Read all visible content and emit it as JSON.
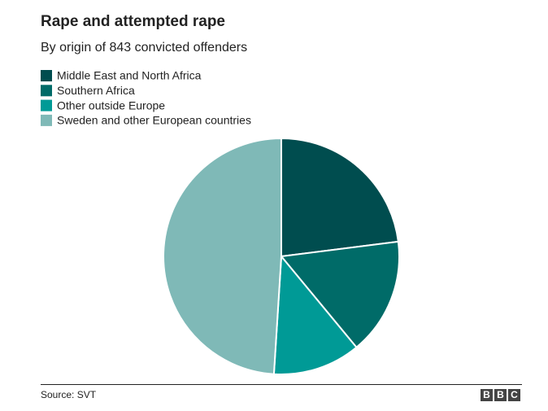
{
  "chart_data": {
    "type": "pie",
    "title": "Rape and attempted rape",
    "subtitle": "By origin of 843 convicted offenders",
    "categories": [
      "Middle East and North Africa",
      "Southern Africa",
      "Other outside Europe",
      "Sweden and other European countries"
    ],
    "values": [
      23,
      16,
      12,
      49
    ],
    "colors": [
      "#004d4f",
      "#006b68",
      "#009a96",
      "#7fb9b7"
    ],
    "source": "Source: SVT",
    "logo": [
      "B",
      "B",
      "C"
    ]
  }
}
